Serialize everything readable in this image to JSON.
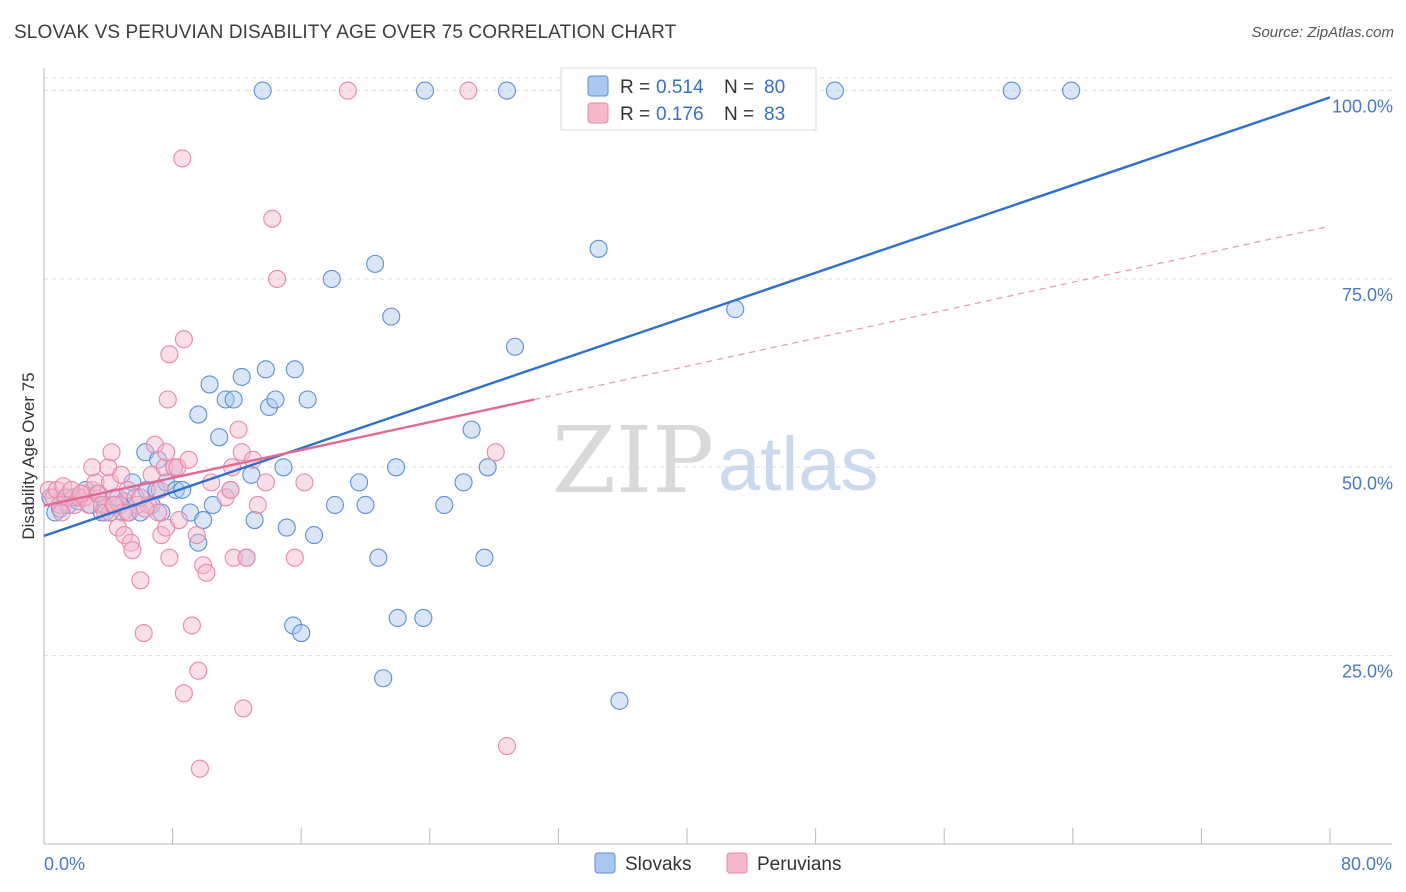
{
  "title": "SLOVAK VS PERUVIAN DISABILITY AGE OVER 75 CORRELATION CHART",
  "source": "Source: ZipAtlas.com",
  "watermark": {
    "zip": "ZIP",
    "atlas": "atlas"
  },
  "colors": {
    "slovak_fill": "#a9c7ef",
    "slovak_stroke": "#5b8fd8",
    "slovak_line": "#2f6fcf",
    "peruvian_fill": "#f6b9cc",
    "peruvian_stroke": "#e889a8",
    "peruvian_line": "#e06a95",
    "tick_label": "#4a78c8",
    "grid": "#dddddd"
  },
  "legend_top": [
    {
      "r_label": "R =",
      "r_value": "0.514",
      "n_label": "N =",
      "n_value": "80"
    },
    {
      "r_label": "R =",
      "r_value": "0.176",
      "n_label": "N =",
      "n_value": "83"
    }
  ],
  "chart_data": {
    "type": "scatter",
    "title": "SLOVAK VS PERUVIAN DISABILITY AGE OVER 75 CORRELATION CHART",
    "xlabel": "",
    "ylabel": "Disability Age Over 75",
    "xlim": [
      0,
      80
    ],
    "ylim": [
      0,
      103
    ],
    "x_tick_labels": [
      "0.0%",
      "80.0%"
    ],
    "y_ticks": [
      25,
      50,
      75,
      100
    ],
    "y_tick_labels": [
      "25.0%",
      "50.0%",
      "75.0%",
      "100.0%"
    ],
    "grid": "horizontal dashed",
    "legend_position": "bottom-center",
    "series": [
      {
        "name": "Slovaks",
        "R": 0.514,
        "N": 80,
        "trend": {
          "x": [
            0,
            80
          ],
          "y": [
            40.9,
            99.1
          ],
          "style": "solid"
        },
        "points": [
          [
            0.4,
            46
          ],
          [
            0.7,
            44
          ],
          [
            1.0,
            44.5
          ],
          [
            1.3,
            46
          ],
          [
            1.5,
            45
          ],
          [
            1.8,
            46
          ],
          [
            2.1,
            45.5
          ],
          [
            2.6,
            47
          ],
          [
            2.9,
            45
          ],
          [
            3.3,
            46.5
          ],
          [
            3.6,
            44
          ],
          [
            3.8,
            45
          ],
          [
            4.1,
            44
          ],
          [
            4.4,
            46
          ],
          [
            4.7,
            45
          ],
          [
            5.0,
            45.5
          ],
          [
            5.2,
            44
          ],
          [
            5.5,
            48
          ],
          [
            5.7,
            46
          ],
          [
            6.0,
            44
          ],
          [
            6.4,
            47
          ],
          [
            6.7,
            45
          ],
          [
            7.0,
            47
          ],
          [
            7.3,
            44
          ],
          [
            6.3,
            52
          ],
          [
            7.1,
            51
          ],
          [
            7.6,
            48
          ],
          [
            8.1,
            50
          ],
          [
            8.2,
            47
          ],
          [
            8.6,
            47
          ],
          [
            9.1,
            44
          ],
          [
            9.6,
            40
          ],
          [
            9.9,
            43
          ],
          [
            9.6,
            57
          ],
          [
            10.3,
            61
          ],
          [
            10.5,
            45
          ],
          [
            10.9,
            54
          ],
          [
            11.3,
            59
          ],
          [
            11.6,
            47
          ],
          [
            11.8,
            59
          ],
          [
            12.3,
            62
          ],
          [
            12.6,
            38
          ],
          [
            12.9,
            49
          ],
          [
            13.1,
            43
          ],
          [
            13.8,
            63
          ],
          [
            14.0,
            58
          ],
          [
            14.4,
            59
          ],
          [
            14.9,
            50
          ],
          [
            15.1,
            42
          ],
          [
            15.6,
            63
          ],
          [
            15.5,
            29
          ],
          [
            16.0,
            28
          ],
          [
            16.4,
            59
          ],
          [
            16.8,
            41
          ],
          [
            17.9,
            75
          ],
          [
            18.1,
            45
          ],
          [
            19.6,
            48
          ],
          [
            20.0,
            45
          ],
          [
            20.6,
            77
          ],
          [
            20.8,
            38
          ],
          [
            21.1,
            22
          ],
          [
            21.6,
            70
          ],
          [
            21.9,
            50
          ],
          [
            22.0,
            30
          ],
          [
            23.6,
            30
          ],
          [
            24.9,
            45
          ],
          [
            26.1,
            48
          ],
          [
            26.6,
            55
          ],
          [
            27.4,
            38
          ],
          [
            27.6,
            50
          ],
          [
            29.3,
            66
          ],
          [
            34.5,
            79
          ],
          [
            35.8,
            19
          ],
          [
            43.0,
            71
          ],
          [
            13.6,
            100
          ],
          [
            23.7,
            100
          ],
          [
            28.8,
            100
          ],
          [
            49.2,
            100
          ],
          [
            60.2,
            100
          ],
          [
            63.9,
            100
          ]
        ]
      },
      {
        "name": "Peruvians",
        "R": 0.176,
        "N": 83,
        "trend": {
          "x": [
            0,
            30.5
          ],
          "y": [
            44.9,
            59.0
          ],
          "style": "solid",
          "extension": {
            "x": [
              30.5,
              80
            ],
            "y": [
              59.0,
              82.0
            ],
            "style": "dashed"
          }
        },
        "points": [
          [
            0.3,
            47
          ],
          [
            0.6,
            46
          ],
          [
            0.8,
            47
          ],
          [
            1.0,
            45
          ],
          [
            1.2,
            47.5
          ],
          [
            1.4,
            46
          ],
          [
            1.7,
            47
          ],
          [
            1.9,
            45
          ],
          [
            2.2,
            46
          ],
          [
            2.5,
            46
          ],
          [
            2.8,
            45
          ],
          [
            3.0,
            47
          ],
          [
            3.2,
            48
          ],
          [
            3.4,
            46.5
          ],
          [
            3.6,
            45
          ],
          [
            3.8,
            44
          ],
          [
            4.1,
            48
          ],
          [
            4.3,
            45
          ],
          [
            4.6,
            46
          ],
          [
            4.9,
            44
          ],
          [
            3.0,
            50
          ],
          [
            4.0,
            50
          ],
          [
            4.2,
            52
          ],
          [
            4.6,
            42
          ],
          [
            4.8,
            49
          ],
          [
            5.0,
            41
          ],
          [
            5.2,
            47
          ],
          [
            5.4,
            40
          ],
          [
            5.5,
            39
          ],
          [
            5.8,
            45
          ],
          [
            6.0,
            35
          ],
          [
            6.2,
            28
          ],
          [
            6.5,
            45
          ],
          [
            6.7,
            49
          ],
          [
            6.9,
            53
          ],
          [
            7.1,
            44
          ],
          [
            7.2,
            47
          ],
          [
            7.3,
            41
          ],
          [
            7.5,
            50
          ],
          [
            7.6,
            52
          ],
          [
            7.8,
            38
          ],
          [
            7.6,
            42
          ],
          [
            7.8,
            65
          ],
          [
            7.7,
            59
          ],
          [
            8.1,
            50
          ],
          [
            8.3,
            50
          ],
          [
            8.4,
            43
          ],
          [
            8.7,
            67
          ],
          [
            8.6,
            91
          ],
          [
            8.7,
            20
          ],
          [
            9.0,
            51
          ],
          [
            9.2,
            29
          ],
          [
            9.5,
            41
          ],
          [
            9.6,
            23
          ],
          [
            9.7,
            10
          ],
          [
            9.9,
            37
          ],
          [
            10.1,
            36
          ],
          [
            10.4,
            48
          ],
          [
            11.3,
            46
          ],
          [
            11.6,
            47
          ],
          [
            11.7,
            50
          ],
          [
            11.8,
            38
          ],
          [
            12.3,
            52
          ],
          [
            12.1,
            55
          ],
          [
            12.4,
            18
          ],
          [
            12.6,
            38
          ],
          [
            13.3,
            45
          ],
          [
            13.8,
            48
          ],
          [
            14.2,
            83
          ],
          [
            14.5,
            75
          ],
          [
            15.6,
            38
          ],
          [
            16.2,
            48
          ],
          [
            18.9,
            100
          ],
          [
            26.4,
            100
          ],
          [
            28.1,
            52
          ],
          [
            28.8,
            13
          ],
          [
            4.4,
            45
          ],
          [
            5.3,
            44
          ],
          [
            6.0,
            46
          ],
          [
            6.3,
            44.5
          ],
          [
            2.3,
            46.5
          ],
          [
            1.1,
            44
          ],
          [
            13.0,
            51
          ]
        ]
      }
    ]
  },
  "legend_bottom": [
    {
      "label": "Slovaks"
    },
    {
      "label": "Peruvians"
    }
  ]
}
